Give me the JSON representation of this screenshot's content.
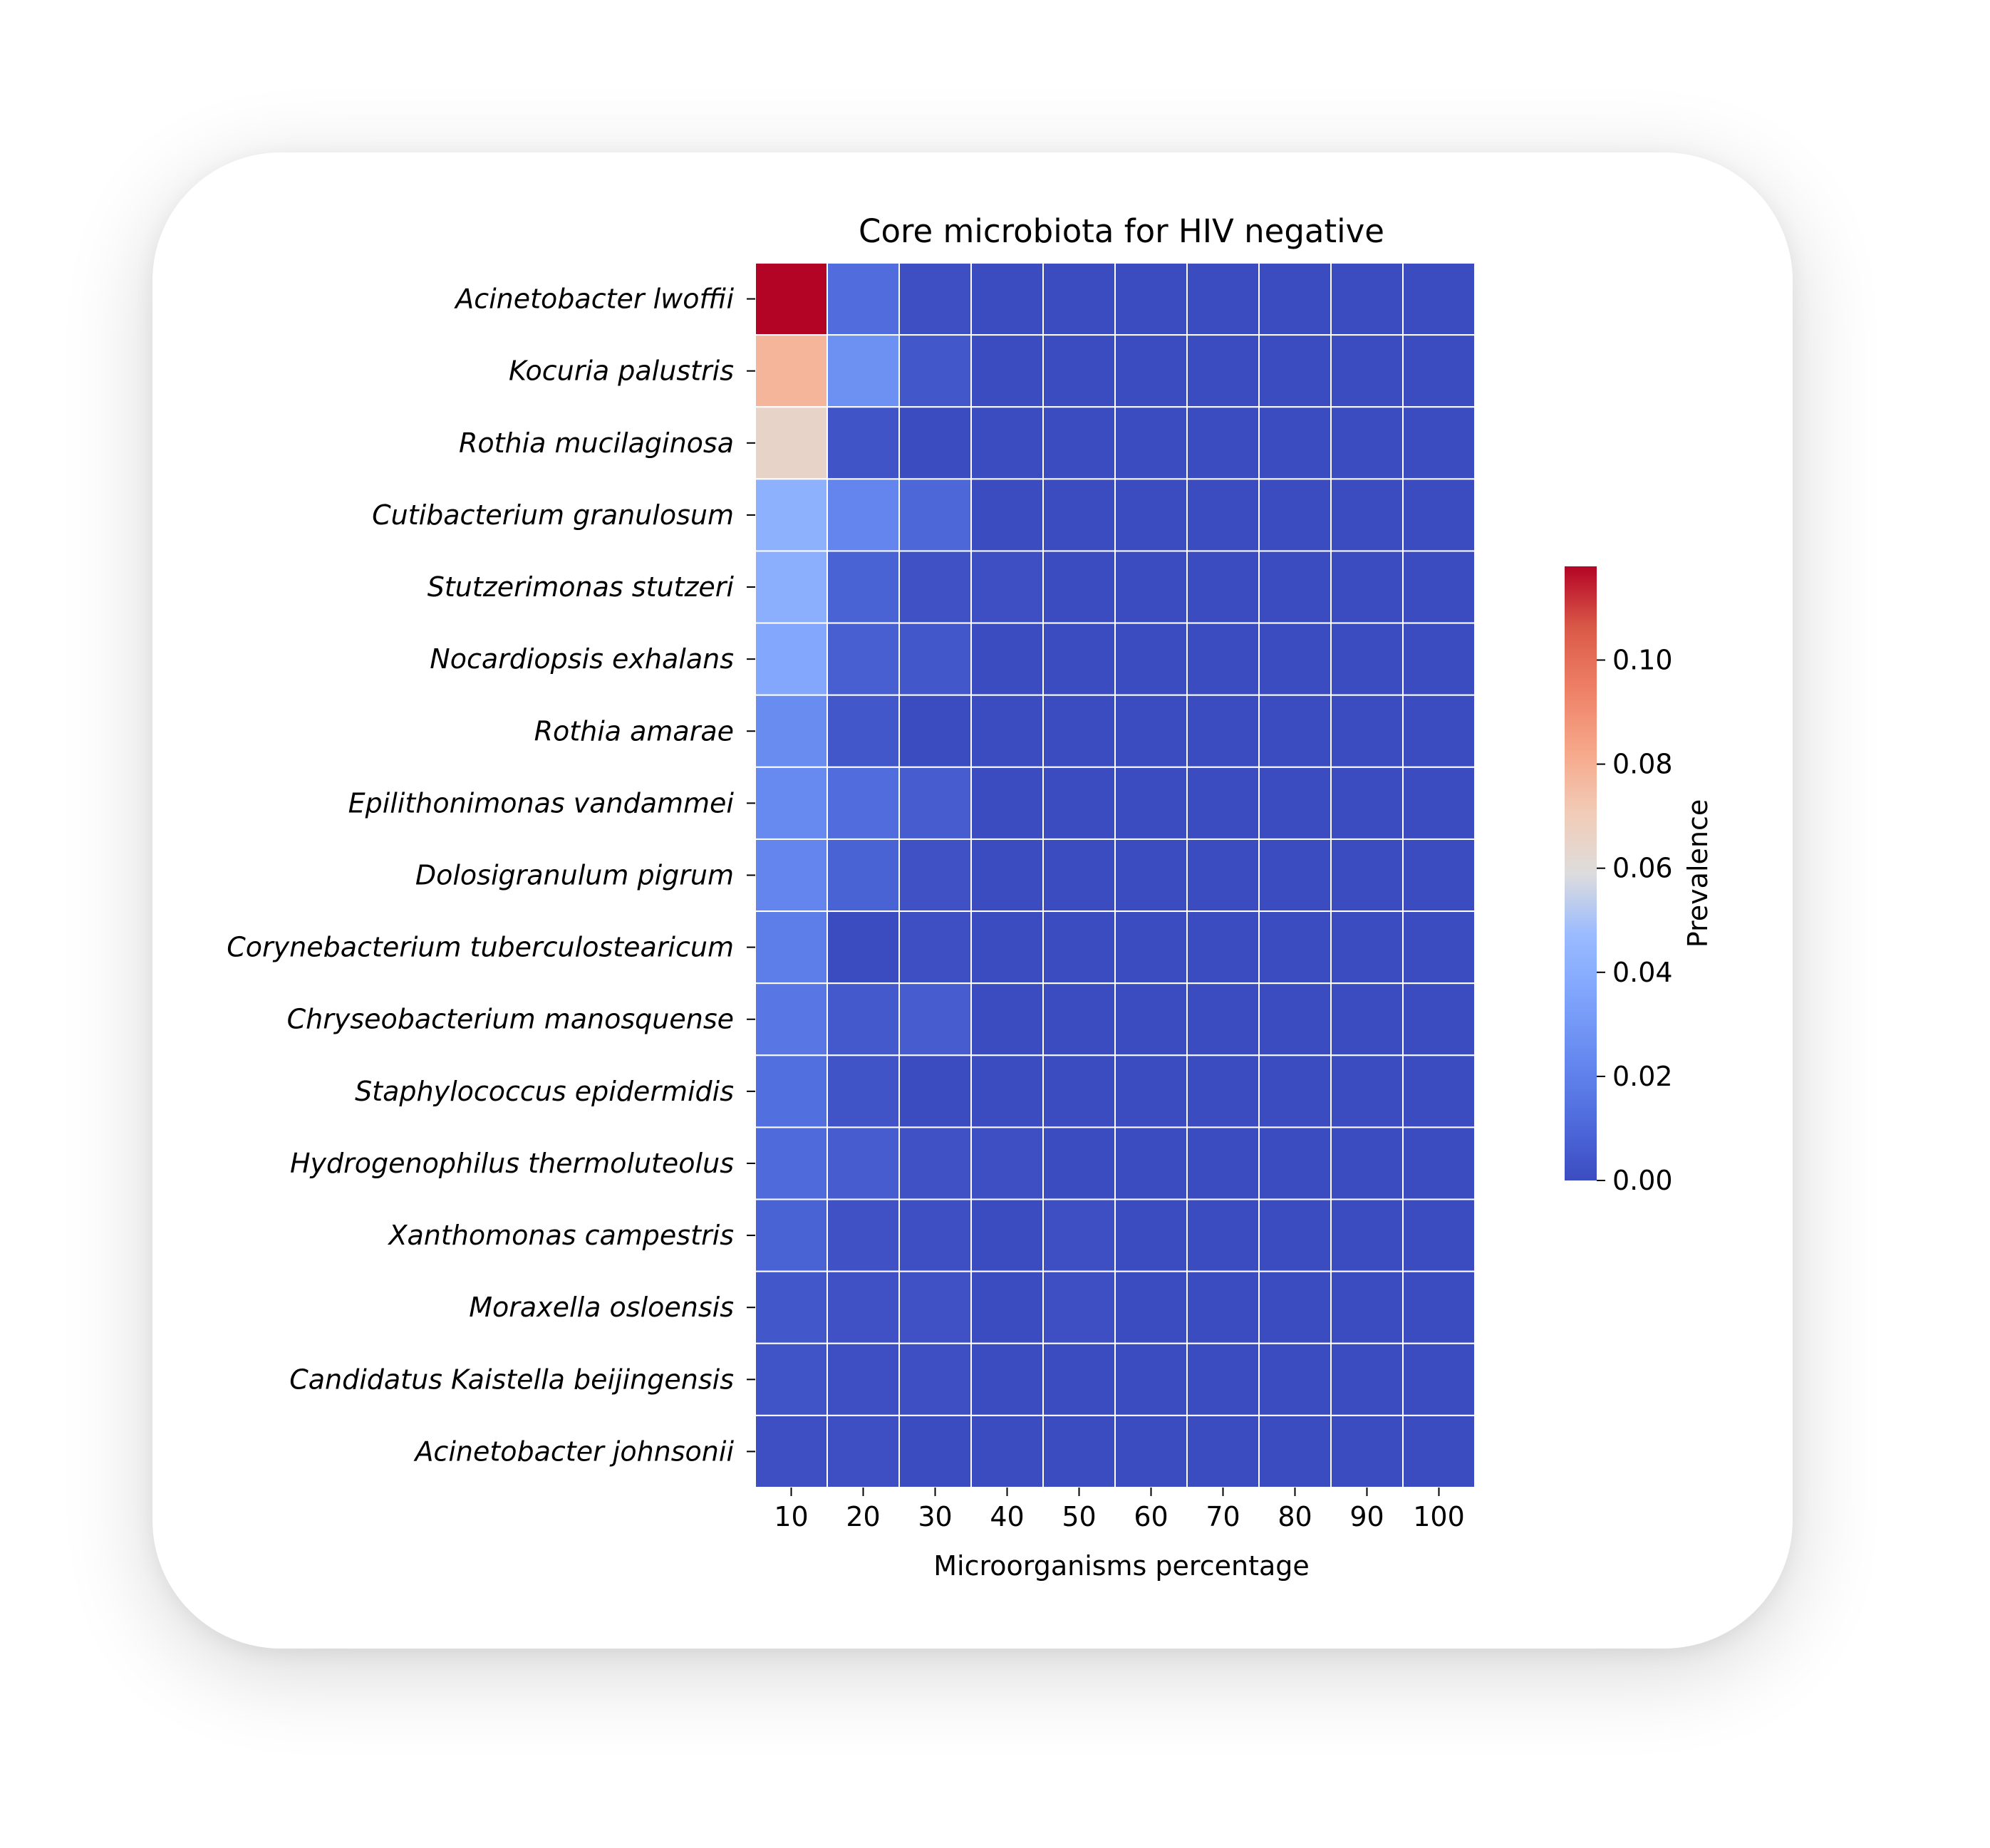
{
  "chart_data": {
    "type": "heatmap",
    "title": "Core microbiota for HIV negative",
    "xlabel": "Microorganisms percentage",
    "colorbar_label": "Prevalence",
    "colormap": "coolwarm",
    "vmin": 0.0,
    "vmax": 0.118,
    "colorbar_ticks": [
      "0.00",
      "0.02",
      "0.04",
      "0.06",
      "0.08",
      "0.10"
    ],
    "x_categories": [
      "10",
      "20",
      "30",
      "40",
      "50",
      "60",
      "70",
      "80",
      "90",
      "100"
    ],
    "y_categories": [
      "Acinetobacter lwoffii",
      "Kocuria palustris",
      "Rothia mucilaginosa",
      "Cutibacterium granulosum",
      "Stutzerimonas stutzeri",
      "Nocardiopsis exhalans",
      "Rothia amarae",
      "Epilithonimonas vandammei",
      "Dolosigranulum pigrum",
      "Corynebacterium tuberculostearicum",
      "Chryseobacterium manosquense",
      "Staphylococcus epidermidis",
      "Hydrogenophilus thermoluteolus",
      "Xanthomonas campestris",
      "Moraxella osloensis",
      "Candidatus Kaistella beijingensis",
      "Acinetobacter johnsonii"
    ],
    "values": [
      [
        0.118,
        0.012,
        0.001,
        0.0,
        0.0,
        0.0,
        0.0,
        0.0,
        0.0,
        0.0
      ],
      [
        0.078,
        0.027,
        0.004,
        0.0,
        0.0,
        0.0,
        0.0,
        0.0,
        0.0,
        0.0
      ],
      [
        0.065,
        0.003,
        0.0,
        0.0,
        0.0,
        0.0,
        0.0,
        0.0,
        0.0,
        0.0
      ],
      [
        0.042,
        0.022,
        0.01,
        0.0,
        0.0,
        0.0,
        0.0,
        0.0,
        0.0,
        0.0
      ],
      [
        0.041,
        0.008,
        0.002,
        0.001,
        0.0,
        0.0,
        0.0,
        0.0,
        0.0,
        0.0
      ],
      [
        0.037,
        0.007,
        0.004,
        0.0,
        0.0,
        0.0,
        0.0,
        0.0,
        0.0,
        0.0
      ],
      [
        0.025,
        0.004,
        0.0,
        0.0,
        0.0,
        0.0,
        0.0,
        0.0,
        0.0,
        0.0
      ],
      [
        0.024,
        0.012,
        0.006,
        0.0,
        0.0,
        0.0,
        0.0,
        0.0,
        0.0,
        0.0
      ],
      [
        0.022,
        0.008,
        0.002,
        0.0,
        0.0,
        0.0,
        0.0,
        0.0,
        0.0,
        0.0
      ],
      [
        0.019,
        0.0,
        0.001,
        0.0,
        0.0,
        0.0,
        0.0,
        0.0,
        0.0,
        0.0
      ],
      [
        0.016,
        0.005,
        0.006,
        0.0,
        0.0,
        0.0,
        0.0,
        0.0,
        0.0,
        0.0
      ],
      [
        0.013,
        0.003,
        0.0,
        0.0,
        0.0,
        0.0,
        0.0,
        0.0,
        0.0,
        0.0
      ],
      [
        0.011,
        0.006,
        0.002,
        0.001,
        0.0,
        0.0,
        0.0,
        0.0,
        0.0,
        0.0
      ],
      [
        0.008,
        0.002,
        0.001,
        0.0,
        0.001,
        0.0,
        0.0,
        0.0,
        0.0,
        0.0
      ],
      [
        0.004,
        0.002,
        0.002,
        0.0,
        0.001,
        0.0,
        0.0,
        0.0,
        0.0,
        0.0
      ],
      [
        0.003,
        0.001,
        0.001,
        0.0,
        0.0,
        0.0,
        0.0,
        0.0,
        0.0,
        0.0
      ],
      [
        0.001,
        0.001,
        0.0,
        0.0,
        0.0,
        0.0,
        0.0,
        0.0,
        0.0,
        0.0
      ]
    ]
  }
}
